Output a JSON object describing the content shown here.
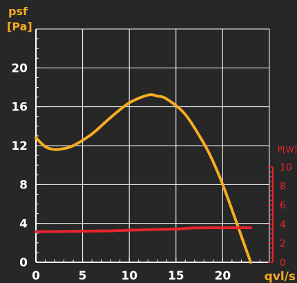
{
  "colors": {
    "background": "#272727",
    "axis": "#ffffff",
    "grid": "#ffffff",
    "pressure": "#f7ac22",
    "power": "#e8242e"
  },
  "chart_data": {
    "type": "line",
    "title": "",
    "xlabel": "qvl/s",
    "ylabel_line1": "psf",
    "ylabel_line2": "[Pa]",
    "y2label": "P[W]",
    "xlim": [
      0,
      25
    ],
    "ylim": [
      0,
      24
    ],
    "y2lim": [
      0,
      10
    ],
    "x_ticks": [
      0,
      5,
      10,
      15,
      20
    ],
    "y_ticks": [
      0,
      4,
      8,
      12,
      16,
      20
    ],
    "y2_ticks": [
      0,
      2,
      4,
      6,
      8,
      10
    ],
    "grid": true,
    "series": [
      {
        "axis": "left",
        "color": "#f7ac22",
        "x": [
          0,
          1,
          2,
          3,
          4,
          6,
          8,
          10,
          12,
          13,
          14,
          16,
          18,
          19,
          20,
          21,
          22,
          23
        ],
        "y": [
          12.8,
          11.9,
          11.6,
          11.7,
          12.0,
          13.2,
          14.9,
          16.4,
          17.2,
          17.1,
          16.8,
          15.2,
          12.2,
          10.3,
          8.0,
          5.4,
          2.7,
          0
        ]
      },
      {
        "axis": "right",
        "color": "#e8242e",
        "x": [
          0,
          4,
          8,
          11,
          15,
          17,
          20,
          23
        ],
        "y": [
          3.2,
          3.25,
          3.3,
          3.4,
          3.5,
          3.6,
          3.62,
          3.62
        ]
      }
    ]
  }
}
